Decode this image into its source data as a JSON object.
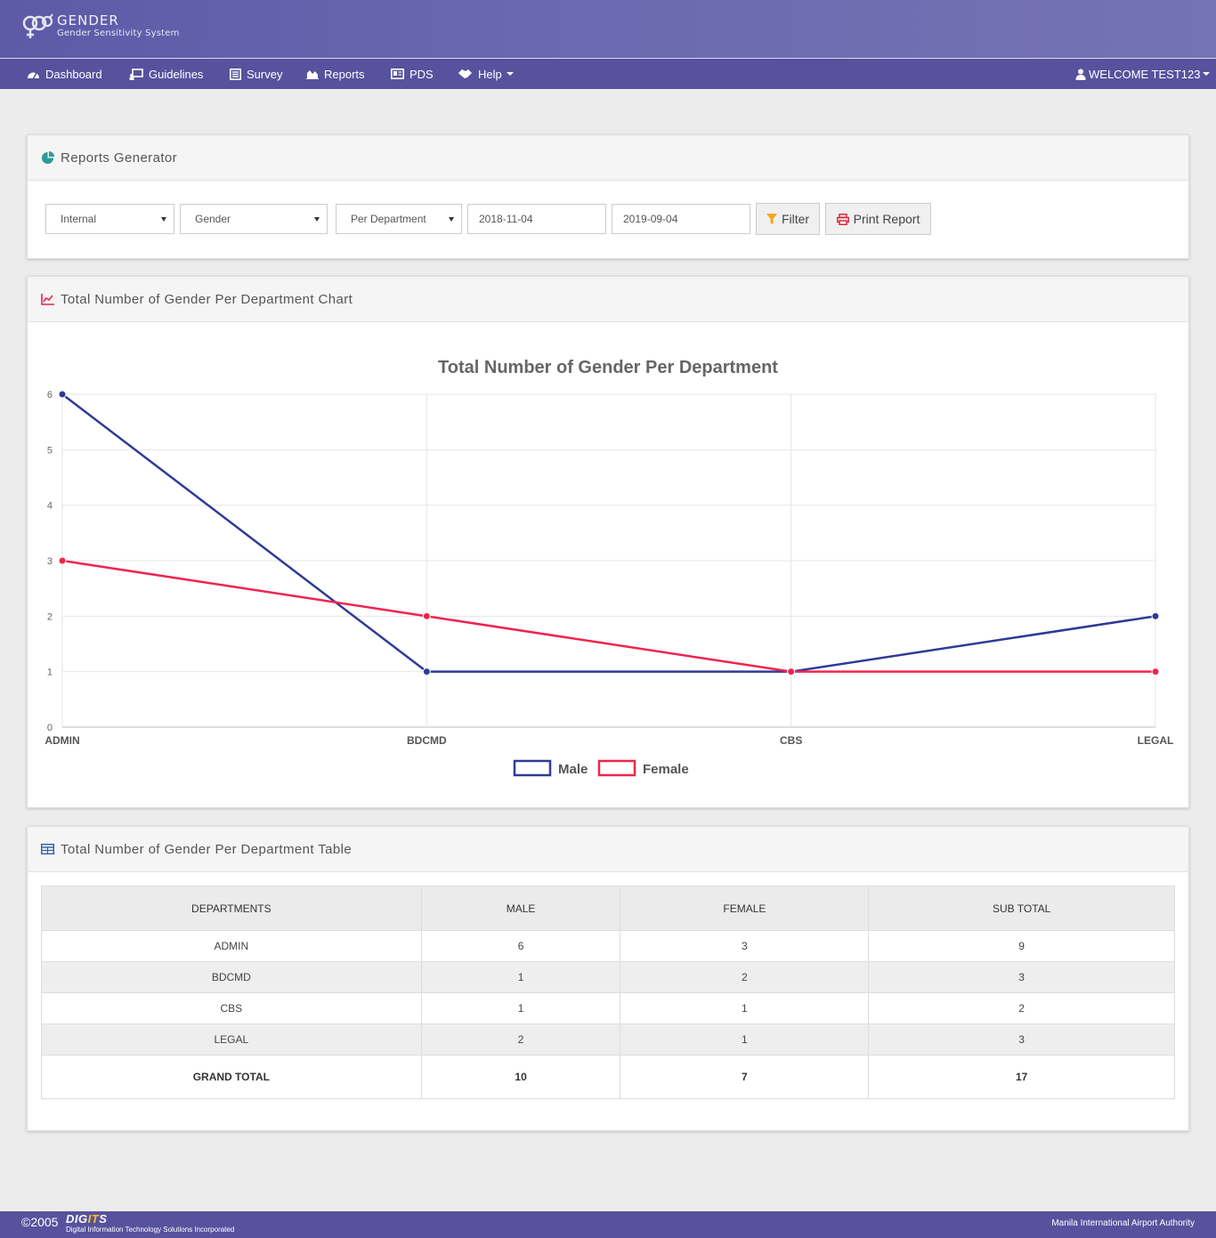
{
  "brand": {
    "title": "GENDER",
    "subtitle": "Gender Sensitivity System"
  },
  "nav": {
    "items": [
      {
        "label": "Dashboard",
        "icon": "dashboard-icon"
      },
      {
        "label": "Guidelines",
        "icon": "guidelines-icon"
      },
      {
        "label": "Survey",
        "icon": "survey-icon"
      },
      {
        "label": "Reports",
        "icon": "area-chart-icon"
      },
      {
        "label": "PDS",
        "icon": "id-card-icon"
      },
      {
        "label": "Help",
        "icon": "handshake-icon"
      }
    ],
    "user_label": "WELCOME TEST123"
  },
  "generator": {
    "title": "Reports Generator",
    "source_select": "Internal",
    "category_select": "Gender",
    "grouping_select": "Per Department",
    "date_from": "2018-11-04",
    "date_to": "2019-09-04",
    "filter_label": "Filter",
    "print_label": "Print Report"
  },
  "chart_panel": {
    "title": "Total Number of Gender Per Department Chart"
  },
  "chart_data": {
    "type": "line",
    "title": "Total Number of Gender Per Department",
    "categories": [
      "ADMIN",
      "BDCMD",
      "CBS",
      "LEGAL"
    ],
    "series": [
      {
        "name": "Male",
        "values": [
          6,
          1,
          1,
          2
        ],
        "color": "#2e3b96"
      },
      {
        "name": "Female",
        "values": [
          3,
          2,
          1,
          1
        ],
        "color": "#f0244e"
      }
    ],
    "ylim": [
      0,
      6
    ],
    "yticks": [
      "0",
      "1",
      "2",
      "3",
      "4",
      "5",
      "6"
    ],
    "grid": true,
    "legend": "bottom"
  },
  "table_panel": {
    "title": "Total Number of Gender Per Department Table",
    "columns": [
      "DEPARTMENTS",
      "MALE",
      "FEMALE",
      "SUB TOTAL"
    ],
    "rows": [
      [
        "ADMIN",
        "6",
        "3",
        "9"
      ],
      [
        "BDCMD",
        "1",
        "2",
        "3"
      ],
      [
        "CBS",
        "1",
        "1",
        "2"
      ],
      [
        "LEGAL",
        "2",
        "1",
        "3"
      ]
    ],
    "total": [
      "GRAND TOTAL",
      "10",
      "7",
      "17"
    ]
  },
  "footer": {
    "copyright": "©2005",
    "company_a": "DIG",
    "company_b": "IT",
    "company_c": "S",
    "company_full": "Digital Information Technology Solutions Incorporated",
    "client": "Manila International Airport Authority"
  },
  "colors": {
    "brand": "#6c6ab0",
    "nav": "#57529e",
    "male": "#2e3b96",
    "female": "#f0244e"
  }
}
